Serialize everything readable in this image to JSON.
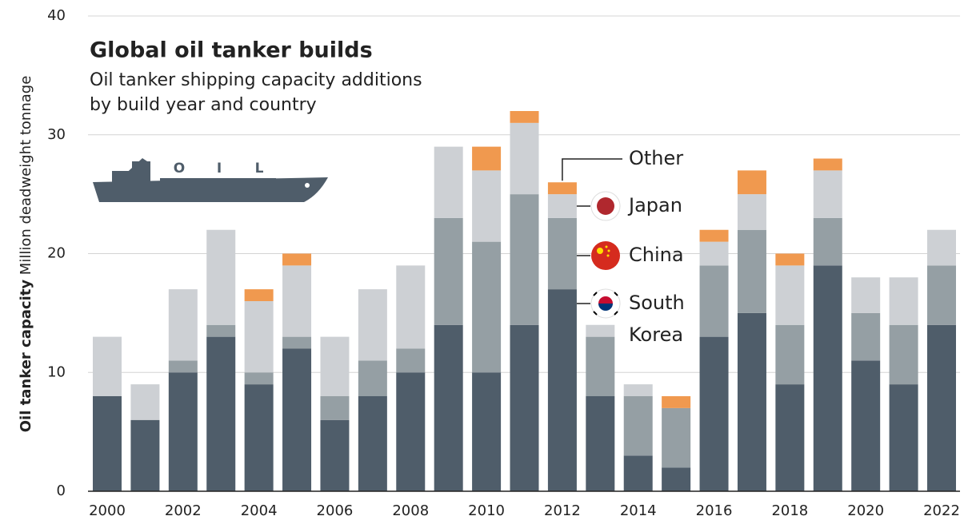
{
  "chart_data": {
    "type": "stacked-bar",
    "title": "Global oil tanker builds",
    "subtitle": [
      "Oil tanker shipping capacity additions",
      "by build year and country"
    ],
    "y_label": "Oil tanker capacity",
    "y_unit": "Million deadweight tonnage",
    "icon_text": [
      "O",
      "I",
      "L"
    ],
    "categories": [
      "2000",
      null,
      "2002",
      null,
      "2004",
      null,
      "2006",
      null,
      "2008",
      null,
      "2010",
      null,
      "2012",
      null,
      "2014",
      null,
      "2016",
      null,
      "2018",
      null,
      "2020",
      null,
      "2022"
    ],
    "series": [
      {
        "name": "South Korea",
        "color": "#4f5d6a",
        "values": [
          8,
          6,
          10,
          13,
          9,
          12,
          6,
          8,
          10,
          14,
          10,
          14,
          17,
          8,
          3,
          2,
          13,
          15,
          9,
          19,
          11,
          9,
          14
        ]
      },
      {
        "name": "China",
        "color": "#959fa4",
        "values": [
          0,
          0,
          1,
          1,
          1,
          1,
          2,
          3,
          2,
          9,
          11,
          11,
          6,
          5,
          5,
          5,
          6,
          7,
          5,
          4,
          4,
          5,
          5
        ]
      },
      {
        "name": "Japan",
        "color": "#cdd0d4",
        "values": [
          5,
          3,
          6,
          8,
          6,
          6,
          5,
          6,
          7,
          6,
          6,
          6,
          2,
          1,
          1,
          0,
          2,
          3,
          5,
          4,
          3,
          4,
          3
        ]
      },
      {
        "name": "Other",
        "color": "#f0994f",
        "values": [
          0,
          0,
          0,
          0,
          1,
          1,
          0,
          0,
          0,
          0,
          2,
          1,
          1,
          0,
          0,
          1,
          1,
          2,
          1,
          1,
          0,
          0,
          0
        ]
      }
    ],
    "ylim": [
      0,
      40
    ],
    "yticks": [
      0,
      10,
      20,
      30,
      40
    ],
    "grid": true
  }
}
